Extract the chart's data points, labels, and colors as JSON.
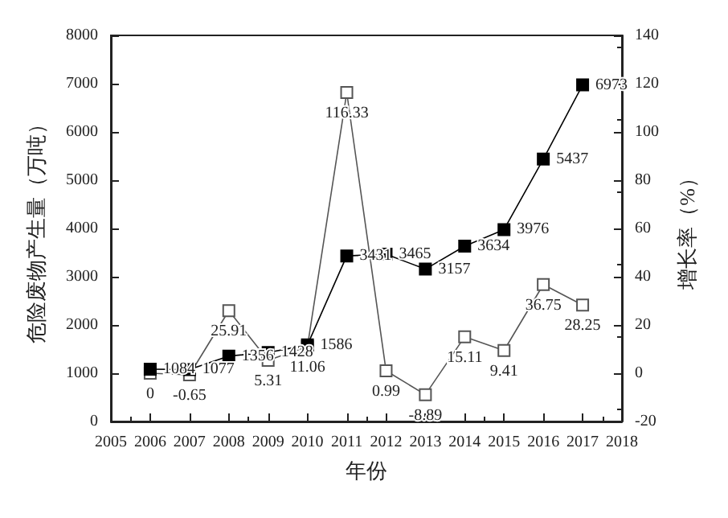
{
  "chart_data": {
    "type": "line",
    "xlabel": "年份",
    "ylabel": "危险废物产生量（万吨）",
    "y2label": "增长率（%）",
    "x": [
      2006,
      2007,
      2008,
      2009,
      2010,
      2011,
      2012,
      2013,
      2014,
      2015,
      2016,
      2017
    ],
    "series": [
      {
        "color": "#000000",
        "marker": "square",
        "values": [
          1084,
          1077,
          1356,
          1428,
          1586,
          3431,
          3465,
          3157,
          3634,
          3976,
          5437,
          6973
        ]
      },
      {
        "color": "#555555",
        "marker": "square_open",
        "axis": "y2",
        "values": [
          0,
          -0.65,
          25.91,
          5.31,
          11.06,
          116.33,
          0.99,
          -8.89,
          15.11,
          9.41,
          36.75,
          28.25
        ]
      }
    ],
    "xlim": [
      2005,
      2018
    ],
    "xticks": [
      2005,
      2006,
      2007,
      2008,
      2009,
      2010,
      2011,
      2012,
      2013,
      2014,
      2015,
      2016,
      2017,
      2018
    ],
    "ylim": [
      0,
      8000
    ],
    "yticks": [
      0,
      1000,
      2000,
      3000,
      4000,
      5000,
      6000,
      7000,
      8000
    ],
    "y2lim": [
      -20,
      140
    ],
    "y2ticks": [
      -20,
      0,
      20,
      40,
      60,
      80,
      100,
      120,
      140
    ],
    "data_labels": true,
    "grid": false
  }
}
